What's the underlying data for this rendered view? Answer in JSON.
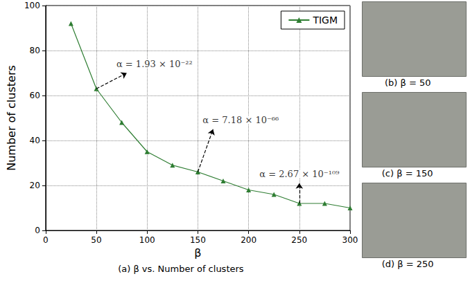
{
  "chart_data": {
    "type": "line",
    "caption": "(a) β vs. Number of clusters",
    "xlabel": "β",
    "ylabel": "Number of clusters",
    "x": [
      25,
      50,
      75,
      100,
      125,
      150,
      175,
      200,
      225,
      250,
      275,
      300
    ],
    "series": [
      {
        "name": "TIGM",
        "color": "#2e7d32",
        "marker": "triangle",
        "line_style": "solid",
        "values": [
          92,
          63,
          48,
          35,
          29,
          26,
          22,
          18,
          16,
          12,
          12,
          10
        ]
      }
    ],
    "xlim": [
      0,
      300
    ],
    "xticks": [
      0,
      50,
      100,
      150,
      200,
      250,
      300
    ],
    "ylim": [
      0,
      100
    ],
    "yticks": [
      0,
      20,
      40,
      60,
      80,
      100
    ],
    "grid": true,
    "legend": "upper right",
    "annotations": [
      {
        "text": "α = 1.93 × 10⁻²²",
        "xy": [
          50,
          63
        ],
        "xytext": [
          80,
          70
        ]
      },
      {
        "text": "α = 7.18 × 10⁻⁶⁶",
        "xy": [
          150,
          26
        ],
        "xytext": [
          165,
          45
        ]
      },
      {
        "text": "α = 2.67 × 10⁻¹⁰⁹",
        "xy": [
          250,
          12
        ],
        "xytext": [
          250,
          21
        ]
      }
    ],
    "subfigures": [
      {
        "label": "(b) β = 50"
      },
      {
        "label": "(c) β = 150"
      },
      {
        "label": "(d) β = 250"
      }
    ]
  }
}
